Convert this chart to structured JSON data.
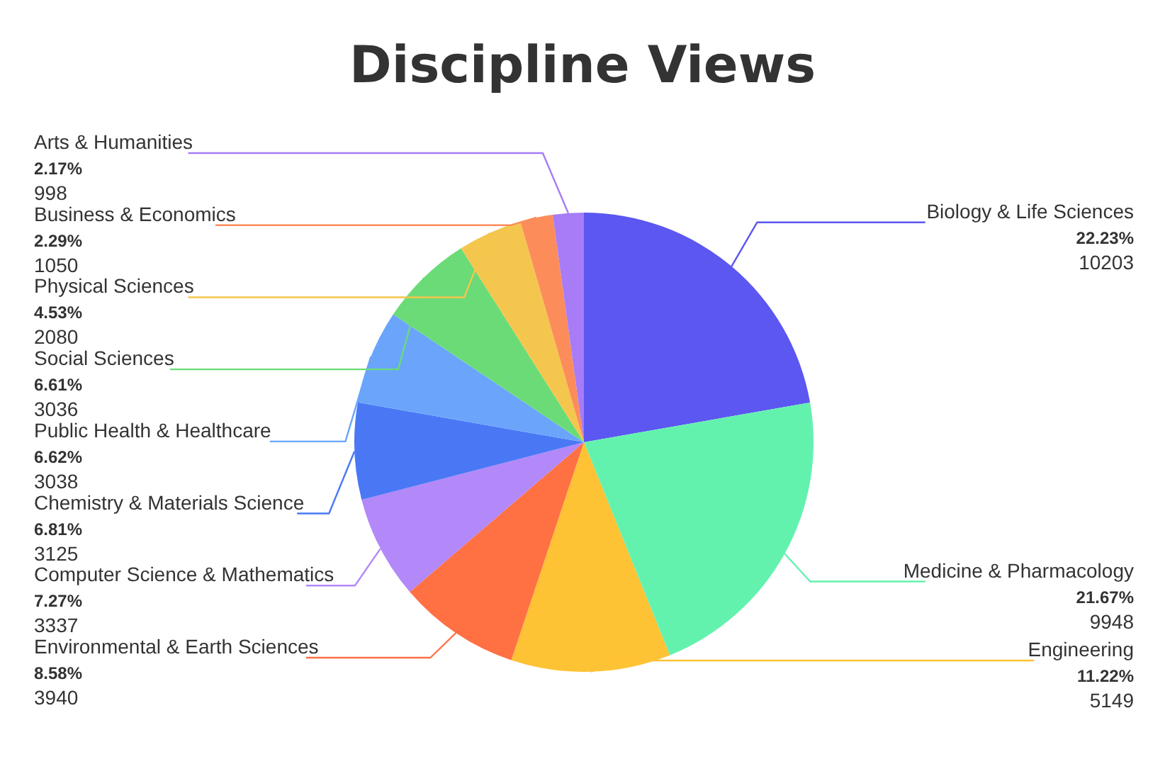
{
  "chart_data": {
    "type": "pie",
    "title": "Discipline Views",
    "categories": [
      "Biology & Life Sciences",
      "Medicine & Pharmacology",
      "Engineering",
      "Environmental & Earth Sciences",
      "Computer Science & Mathematics",
      "Chemistry & Materials Science",
      "Public Health & Healthcare",
      "Social Sciences",
      "Physical Sciences",
      "Business & Economics",
      "Arts & Humanities"
    ],
    "values": [
      22.23,
      21.67,
      11.22,
      8.58,
      7.27,
      6.81,
      6.62,
      6.61,
      4.53,
      2.29,
      2.17
    ],
    "value_labels": [
      "22.23%\n10203",
      "21.67%\n9948",
      "11.22%\n5149",
      "8.58%\n3940",
      "7.27%\n3337",
      "6.81%\n3125",
      "6.62%\n3038",
      "6.61%\n3036",
      "4.53%\n2080",
      "2.29%\n1050",
      "2.17%\n998"
    ],
    "colors": [
      "#5b57f0",
      "#63f2ae",
      "#fec235",
      "#ff7043",
      "#b388f9",
      "#4a78f5",
      "#6aa5fb",
      "#6bdb77",
      "#f4c64d",
      "#fc8c5a",
      "#a77cf6"
    ]
  }
}
